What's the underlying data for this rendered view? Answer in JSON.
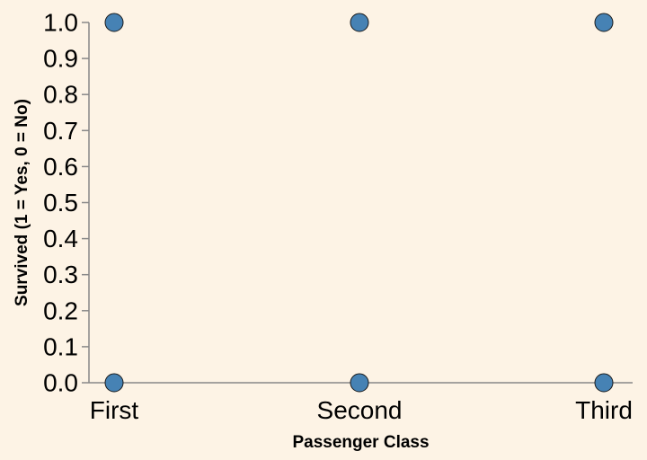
{
  "chart_data": {
    "type": "scatter",
    "title": "",
    "xlabel": "Passenger Class",
    "ylabel": "Survived (1 = Yes, 0 = No)",
    "categories": [
      "First",
      "Second",
      "Third"
    ],
    "points": [
      {
        "x": "First",
        "y": 1
      },
      {
        "x": "Second",
        "y": 1
      },
      {
        "x": "Third",
        "y": 1
      },
      {
        "x": "First",
        "y": 0
      },
      {
        "x": "Second",
        "y": 0
      },
      {
        "x": "Third",
        "y": 0
      }
    ],
    "ylim": [
      0,
      1
    ],
    "yticks": [
      "0.0",
      "0.1",
      "0.2",
      "0.3",
      "0.4",
      "0.5",
      "0.6",
      "0.7",
      "0.8",
      "0.9",
      "1.0"
    ],
    "grid": false,
    "legend": "none"
  },
  "colors": {
    "background": "#fdf3e5",
    "point_fill": "#4682b4",
    "axis": "#888888"
  }
}
